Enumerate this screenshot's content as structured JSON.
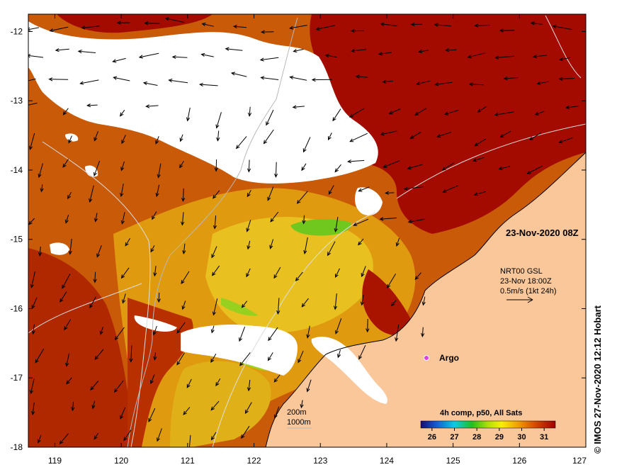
{
  "map": {
    "x_ticks": [
      "119",
      "120",
      "121",
      "122",
      "123",
      "124",
      "125",
      "126",
      "127"
    ],
    "y_ticks": [
      "-12",
      "-13",
      "-14",
      "-15",
      "-16",
      "-17",
      "-18"
    ],
    "lon_range": [
      118.6,
      127.0
    ],
    "lat_range": [
      -18.0,
      -11.75
    ],
    "snapshot_label": "23-Nov-2020 08Z",
    "current_info": {
      "line1": "NRT00 GSL",
      "line2": "23-Nov 18:00Z",
      "line3": "0.5m/s (1kt 24h)"
    },
    "argo_label": "Argo",
    "isobaths": {
      "line1": "200m",
      "line2": "1000m"
    },
    "credit": "© IMOS 27-Nov-2020 12:12 Hobart"
  },
  "colorbar": {
    "title": "4h comp, p50, All Sats",
    "ticks": [
      "26",
      "27",
      "28",
      "29",
      "30",
      "31"
    ],
    "range": [
      25.5,
      31.5
    ]
  },
  "colors": {
    "land": "#FAC79A",
    "cloud": "#FFFFFF",
    "sst_hot": "#A30A00",
    "sst_warm": "#C85000",
    "sst_mid": "#E0A000",
    "sst_low": "#F0DC00",
    "sst_cool": "#6CC61E",
    "argo": "#E040E0"
  }
}
